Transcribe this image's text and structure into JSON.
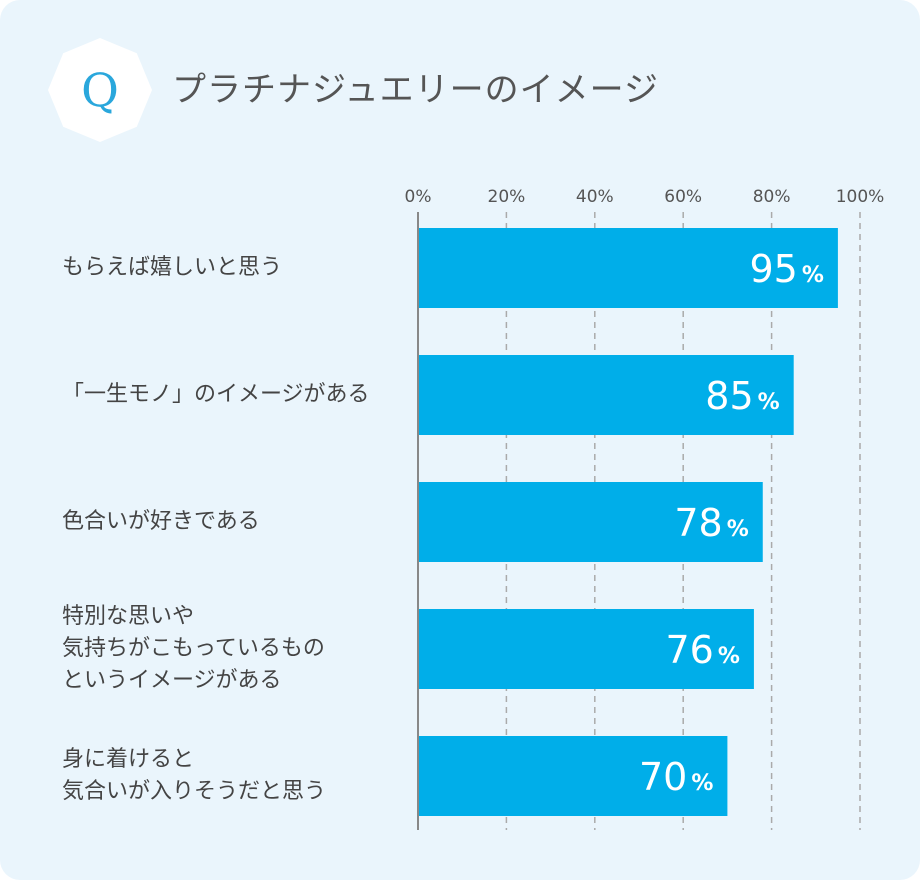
{
  "header": {
    "badge": "Q",
    "title": "プラチナジュエリーのイメージ"
  },
  "chart_data": {
    "type": "bar",
    "orientation": "horizontal",
    "categories": [
      "もらえば嬉しいと思う",
      "「一生モノ」のイメージがある",
      "色合いが好きである",
      "特別な思いや\n気持ちがこもっているもの\nというイメージがある",
      "身に着けると\n気合いが入りそうだと思う"
    ],
    "values": [
      95,
      85,
      78,
      76,
      70
    ],
    "value_suffix": "%",
    "xlim": [
      0,
      100
    ],
    "ticks": [
      0,
      20,
      40,
      60,
      80,
      100
    ],
    "tick_labels": [
      "0%",
      "20%",
      "40%",
      "60%",
      "80%",
      "100%"
    ],
    "grid": true,
    "bar_color": "#00aee9",
    "grid_color": "#aaaaaa"
  },
  "colors": {
    "background": "#eaf5fc",
    "badge_bg": "#ffffff",
    "badge_text": "#2aa7dc",
    "title_text": "#555555"
  }
}
